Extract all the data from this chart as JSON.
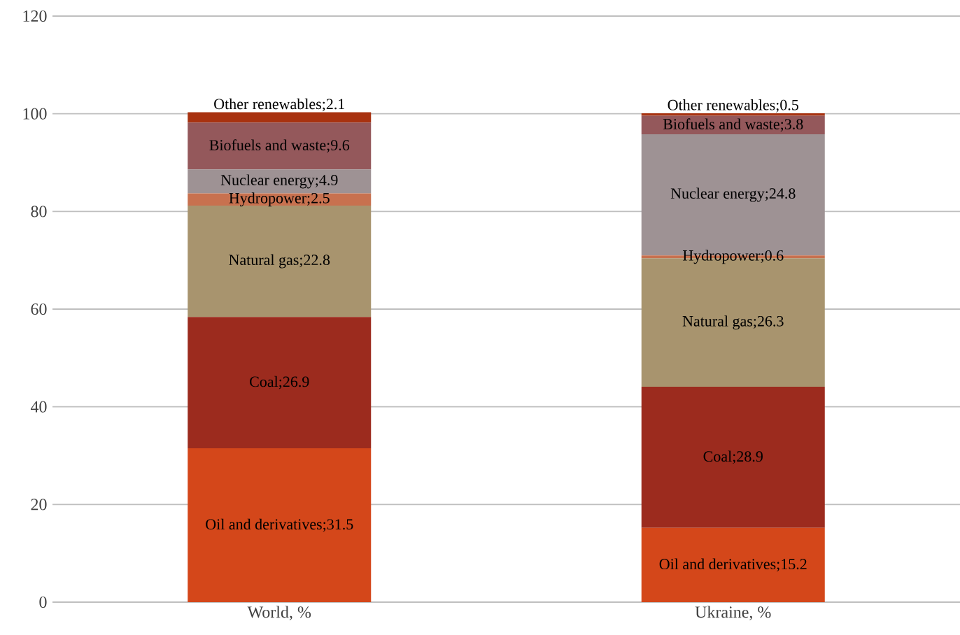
{
  "chart_data": {
    "type": "bar",
    "stacked": true,
    "categories": [
      "World, %",
      "Ukraine, %"
    ],
    "series": [
      {
        "name": "Oil and derivatives",
        "color": "#d4471a",
        "values": [
          31.5,
          15.2
        ],
        "value_labels": [
          ";31.5",
          ";15.2"
        ]
      },
      {
        "name": "Coal",
        "color": "#9c2b1e",
        "values": [
          26.9,
          28.9
        ],
        "value_labels": [
          ";26.9",
          ";28.9"
        ]
      },
      {
        "name": "Natural gas",
        "color": "#a8946e",
        "values": [
          22.8,
          26.3
        ],
        "value_labels": [
          ";22.8",
          ";26.3"
        ]
      },
      {
        "name": "Hydropower",
        "color": "#c8714f",
        "values": [
          2.5,
          0.6
        ],
        "value_labels": [
          ";2.5",
          ";0.6"
        ]
      },
      {
        "name": "Nuclear energy",
        "color": "#9e9294",
        "values": [
          4.9,
          24.8
        ],
        "value_labels": [
          ";4.9",
          ";24.8"
        ]
      },
      {
        "name": "Biofuels and waste",
        "color": "#94585b",
        "values": [
          9.6,
          3.8
        ],
        "value_labels": [
          ";9.6",
          ";3.8"
        ]
      },
      {
        "name": "Other renewables",
        "color": "#a83210",
        "values": [
          2.1,
          0.5
        ],
        "value_labels": [
          ";2.1",
          ";0.5"
        ]
      }
    ],
    "ylim": [
      0,
      120
    ],
    "yticks": [
      0,
      20,
      40,
      60,
      80,
      100,
      120
    ],
    "grid": "y"
  }
}
